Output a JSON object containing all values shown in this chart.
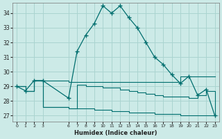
{
  "xlabel": "Humidex (Indice chaleur)",
  "bg_color": "#cceae7",
  "grid_color": "#aad4d0",
  "line_color": "#006e6e",
  "xlim": [
    -0.5,
    23.5
  ],
  "ylim": [
    26.6,
    34.7
  ],
  "yticks": [
    27,
    28,
    29,
    30,
    31,
    32,
    33,
    34
  ],
  "xticks": [
    0,
    1,
    2,
    3,
    6,
    7,
    8,
    9,
    10,
    11,
    12,
    13,
    14,
    15,
    16,
    17,
    18,
    19,
    20,
    21,
    22,
    23
  ],
  "series_main_x": [
    0,
    1,
    2,
    3,
    6,
    7,
    8,
    9,
    10,
    11,
    12,
    13,
    14,
    15,
    16,
    17,
    18,
    19,
    20,
    21,
    22,
    23
  ],
  "series_main_y": [
    29.0,
    28.7,
    29.4,
    29.4,
    28.2,
    31.4,
    32.5,
    33.3,
    34.5,
    34.0,
    34.5,
    33.7,
    33.0,
    32.0,
    31.0,
    30.5,
    29.8,
    29.2,
    29.7,
    28.4,
    28.8,
    27.0
  ],
  "series_upper_x": [
    0,
    1,
    2,
    3,
    6,
    7,
    8,
    9,
    10,
    11,
    12,
    13,
    14,
    15,
    16,
    17,
    18,
    19,
    20,
    21,
    22,
    23
  ],
  "series_upper_y": [
    29.0,
    28.7,
    29.4,
    29.4,
    29.3,
    29.3,
    29.3,
    29.3,
    29.3,
    29.3,
    29.3,
    29.3,
    29.3,
    29.3,
    29.3,
    29.3,
    29.3,
    29.7,
    29.7,
    29.7,
    29.7,
    29.7
  ],
  "series_mid_x": [
    0,
    1,
    2,
    3,
    6,
    7,
    8,
    9,
    10,
    11,
    12,
    13,
    14,
    15,
    16,
    17,
    18,
    19,
    20,
    21,
    22,
    23
  ],
  "series_mid_y": [
    29.0,
    28.7,
    29.4,
    27.6,
    27.5,
    29.1,
    29.0,
    29.0,
    28.9,
    28.9,
    28.8,
    28.7,
    28.6,
    28.5,
    28.4,
    28.3,
    28.3,
    28.3,
    28.2,
    28.4,
    28.7,
    27.0
  ],
  "series_lower_x": [
    0,
    1,
    2,
    3,
    6,
    7,
    8,
    9,
    10,
    11,
    12,
    13,
    14,
    15,
    16,
    17,
    18,
    19,
    20,
    21,
    22,
    23
  ],
  "series_lower_y": [
    29.0,
    28.7,
    29.4,
    27.6,
    27.5,
    27.5,
    27.5,
    27.4,
    27.4,
    27.3,
    27.3,
    27.2,
    27.2,
    27.2,
    27.1,
    27.1,
    27.1,
    27.0,
    27.0,
    27.0,
    27.0,
    27.0
  ]
}
